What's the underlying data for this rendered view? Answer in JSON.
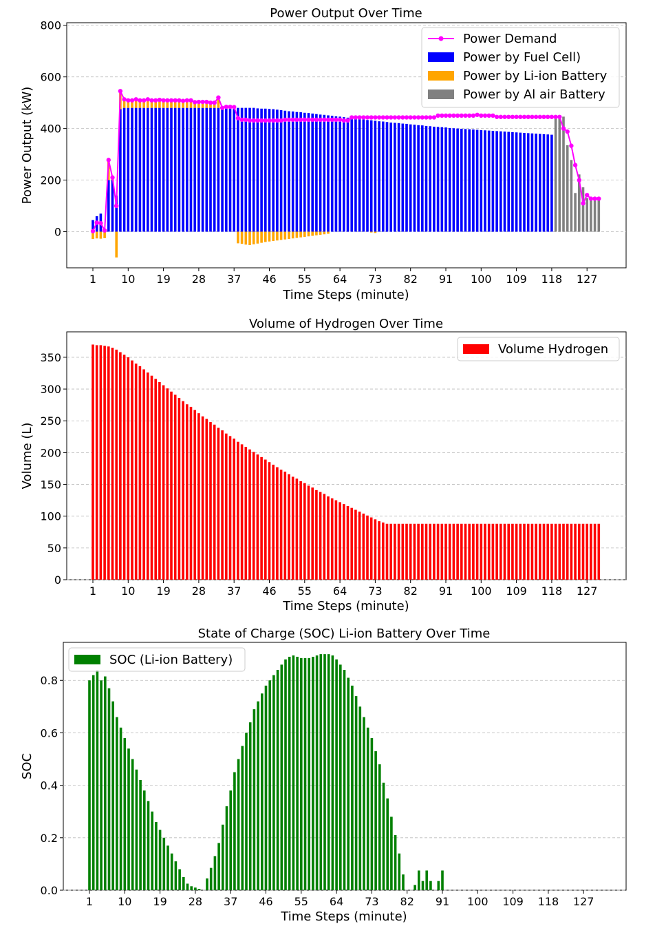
{
  "chart_data": [
    {
      "type": "bar",
      "title": "Power Output Over Time",
      "xlabel": "Time Steps (minute)",
      "ylabel": "Power Output (kW)",
      "ylim": [
        -140,
        810
      ],
      "yticks": [
        0,
        200,
        400,
        600,
        800
      ],
      "xtick_labels": [
        "1",
        "10",
        "19",
        "28",
        "37",
        "46",
        "55",
        "64",
        "73",
        "82",
        "91",
        "100",
        "109",
        "118",
        "127"
      ],
      "x": [
        1,
        2,
        3,
        4,
        5,
        6,
        7,
        8,
        9,
        10,
        11,
        12,
        13,
        14,
        15,
        16,
        17,
        18,
        19,
        20,
        21,
        22,
        23,
        24,
        25,
        26,
        27,
        28,
        29,
        30,
        31,
        32,
        33,
        34,
        35,
        36,
        37,
        38,
        39,
        40,
        41,
        42,
        43,
        44,
        45,
        46,
        47,
        48,
        49,
        50,
        51,
        52,
        53,
        54,
        55,
        56,
        57,
        58,
        59,
        60,
        61,
        62,
        63,
        64,
        65,
        66,
        67,
        68,
        69,
        70,
        71,
        72,
        73,
        74,
        75,
        76,
        77,
        78,
        79,
        80,
        81,
        82,
        83,
        84,
        85,
        86,
        87,
        88,
        89,
        90,
        91,
        92,
        93,
        94,
        95,
        96,
        97,
        98,
        99,
        100,
        101,
        102,
        103,
        104,
        105,
        106,
        107,
        108,
        109,
        110,
        111,
        112,
        113,
        114,
        115,
        116,
        117,
        118,
        119,
        120,
        121,
        122,
        123,
        124,
        125,
        126,
        127,
        128,
        129,
        130
      ],
      "legend": [
        "Power Demand",
        "Power by Fuel Cell)",
        "Power by Li-ion Battery",
        "Power by Al air Battery"
      ],
      "series": [
        {
          "name": "Power Demand",
          "color": "#ff00ff",
          "kind": "line",
          "values": [
            2,
            35,
            33,
            5,
            278,
            210,
            100,
            545,
            513,
            509,
            509,
            513,
            509,
            509,
            513,
            509,
            509,
            511,
            509,
            509,
            509,
            509,
            509,
            507,
            509,
            509,
            502,
            503,
            503,
            503,
            500,
            500,
            520,
            480,
            484,
            484,
            483,
            440,
            434,
            434,
            431,
            431,
            431,
            431,
            431,
            431,
            431,
            431,
            431,
            434,
            434,
            434,
            434,
            434,
            434,
            434,
            434,
            434,
            434,
            434,
            434,
            434,
            434,
            434,
            431,
            431,
            443,
            443,
            443,
            443,
            443,
            443,
            443,
            443,
            443,
            443,
            443,
            443,
            443,
            443,
            443,
            443,
            443,
            443,
            443,
            443,
            443,
            443,
            450,
            450,
            450,
            450,
            450,
            450,
            450,
            450,
            450,
            450,
            453,
            450,
            450,
            450,
            450,
            445,
            445,
            445,
            445,
            445,
            445,
            445,
            445,
            445,
            445,
            445,
            445,
            445,
            445,
            445,
            445,
            445,
            400,
            388,
            333,
            258,
            200,
            110,
            142,
            128,
            128,
            128
          ]
        },
        {
          "name": "Power by Fuel Cell)",
          "color": "#0000ff",
          "kind": "bar",
          "values": [
            45,
            60,
            70,
            0,
            200,
            200,
            140,
            475,
            480,
            480,
            480,
            480,
            480,
            480,
            480,
            480,
            480,
            480,
            480,
            480,
            480,
            480,
            480,
            480,
            480,
            480,
            480,
            480,
            480,
            480,
            480,
            480,
            480,
            480,
            480,
            480,
            480,
            480,
            480,
            480,
            480,
            480,
            478,
            477,
            477,
            476,
            475,
            473,
            471,
            469,
            467,
            466,
            464,
            463,
            461,
            460,
            458,
            456,
            454,
            453,
            451,
            449,
            447,
            446,
            444,
            442,
            440,
            439,
            437,
            435,
            433,
            432,
            430,
            428,
            427,
            425,
            423,
            422,
            421,
            419,
            418,
            416,
            415,
            413,
            412,
            410,
            409,
            407,
            406,
            405,
            404,
            402,
            401,
            400,
            399,
            398,
            397,
            396,
            395,
            394,
            393,
            392,
            391,
            390,
            389,
            388,
            387,
            386,
            385,
            384,
            383,
            382,
            381,
            380,
            379,
            378,
            377,
            376,
            0,
            0,
            0,
            0,
            0,
            0,
            0,
            0,
            0,
            0,
            0,
            0
          ]
        },
        {
          "name": "Power by Li-ion Battery",
          "color": "#ffa500",
          "kind": "bar",
          "values": [
            -28,
            -26,
            -27,
            -25,
            80,
            15,
            -100,
            70,
            33,
            29,
            29,
            33,
            29,
            29,
            33,
            29,
            29,
            31,
            29,
            29,
            29,
            29,
            29,
            27,
            29,
            29,
            22,
            23,
            23,
            23,
            20,
            20,
            40,
            0,
            0,
            0,
            0,
            -45,
            -47,
            -50,
            -52,
            -49,
            -46,
            -43,
            -40,
            -38,
            -36,
            -34,
            -32,
            -30,
            -28,
            -26,
            -24,
            -22,
            -20,
            -18,
            -16,
            -14,
            -12,
            -10,
            -8,
            0,
            0,
            0,
            0,
            0,
            0,
            0,
            0,
            0,
            0,
            -3,
            -5,
            0,
            0,
            0,
            0,
            0,
            0,
            0,
            0,
            0,
            0,
            0,
            0,
            0,
            0,
            0,
            0,
            0,
            0,
            0,
            0,
            0,
            0,
            0,
            0,
            0,
            0,
            0,
            0,
            0,
            0,
            0,
            0,
            0,
            0,
            0,
            0,
            0,
            0,
            0,
            0,
            0,
            0,
            0,
            0,
            0,
            0,
            0,
            0,
            0,
            0,
            0,
            0,
            0,
            0,
            0,
            0,
            0
          ]
        },
        {
          "name": "Power by Al air Battery",
          "color": "#808080",
          "kind": "bar",
          "values": [
            0,
            0,
            0,
            0,
            0,
            0,
            0,
            0,
            0,
            0,
            0,
            0,
            0,
            0,
            0,
            0,
            0,
            0,
            0,
            0,
            0,
            0,
            0,
            0,
            0,
            0,
            0,
            0,
            0,
            0,
            0,
            0,
            0,
            0,
            0,
            0,
            0,
            0,
            0,
            0,
            0,
            0,
            0,
            0,
            0,
            0,
            0,
            0,
            0,
            0,
            0,
            0,
            0,
            0,
            0,
            0,
            0,
            0,
            0,
            0,
            0,
            0,
            0,
            0,
            0,
            0,
            0,
            0,
            0,
            0,
            0,
            0,
            0,
            0,
            0,
            0,
            0,
            0,
            0,
            0,
            0,
            0,
            0,
            0,
            0,
            0,
            0,
            0,
            0,
            0,
            0,
            0,
            0,
            0,
            0,
            0,
            0,
            0,
            0,
            0,
            0,
            0,
            0,
            0,
            0,
            0,
            0,
            0,
            0,
            0,
            0,
            0,
            0,
            0,
            0,
            0,
            0,
            0,
            445,
            448,
            446,
            335,
            278,
            150,
            222,
            172,
            130,
            130,
            130,
            130
          ]
        }
      ]
    },
    {
      "type": "bar",
      "title": "Volume of Hydrogen Over Time",
      "xlabel": "Time Steps (minute)",
      "ylabel": "Volume (L)",
      "ylim": [
        0,
        390
      ],
      "yticks": [
        0,
        50,
        100,
        150,
        200,
        250,
        300,
        350
      ],
      "xtick_labels": [
        "1",
        "10",
        "19",
        "28",
        "37",
        "46",
        "55",
        "64",
        "73",
        "82",
        "91",
        "100",
        "109",
        "118",
        "127"
      ],
      "legend": [
        "Volume Hydrogen"
      ],
      "series": [
        {
          "name": "Volume Hydrogen",
          "color": "#ff0000",
          "values": [
            370,
            369,
            369,
            368,
            367,
            365,
            362,
            358,
            354,
            350,
            345,
            340,
            336,
            331,
            326,
            321,
            316,
            311,
            306,
            301,
            296,
            291,
            286,
            281,
            276,
            272,
            267,
            262,
            257,
            253,
            248,
            244,
            239,
            235,
            230,
            226,
            222,
            217,
            213,
            209,
            205,
            201,
            197,
            193,
            189,
            185,
            181,
            177,
            173,
            170,
            166,
            162,
            159,
            155,
            152,
            148,
            145,
            141,
            138,
            135,
            131,
            128,
            125,
            122,
            119,
            116,
            113,
            110,
            107,
            104,
            101,
            98,
            95,
            92,
            90,
            88,
            88,
            88,
            88,
            88,
            88,
            88,
            88,
            88,
            88,
            88,
            88,
            88,
            88,
            88,
            88,
            88,
            88,
            88,
            88,
            88,
            88,
            88,
            88,
            88,
            88,
            88,
            88,
            88,
            88,
            88,
            88,
            88,
            88,
            88,
            88,
            88,
            88,
            88,
            88,
            88,
            88,
            88,
            88,
            88,
            88,
            88,
            88,
            88,
            88,
            88,
            88,
            88,
            88,
            88
          ]
        }
      ]
    },
    {
      "type": "bar",
      "title": "State of Charge (SOC) Li-ion Battery Over Time",
      "xlabel": "Time Steps (minute)",
      "ylabel": "SOC",
      "ylim": [
        0,
        0.945
      ],
      "yticks": [
        0.0,
        0.2,
        0.4,
        0.6,
        0.8
      ],
      "ytick_labels": [
        "0.0",
        "0.2",
        "0.4",
        "0.6",
        "0.8"
      ],
      "xtick_labels": [
        "1",
        "10",
        "19",
        "28",
        "37",
        "46",
        "55",
        "64",
        "73",
        "82",
        "91",
        "100",
        "109",
        "118",
        "127"
      ],
      "legend": [
        "SOC (Li-ion Battery)"
      ],
      "series": [
        {
          "name": "SOC (Li-ion Battery)",
          "color": "#008000",
          "values": [
            0.8,
            0.82,
            0.84,
            0.8,
            0.815,
            0.77,
            0.72,
            0.66,
            0.62,
            0.58,
            0.54,
            0.5,
            0.46,
            0.42,
            0.38,
            0.34,
            0.3,
            0.26,
            0.23,
            0.2,
            0.17,
            0.14,
            0.11,
            0.08,
            0.05,
            0.025,
            0.015,
            0.01,
            0.005,
            0.0,
            0.045,
            0.085,
            0.13,
            0.18,
            0.25,
            0.32,
            0.38,
            0.45,
            0.5,
            0.55,
            0.6,
            0.64,
            0.69,
            0.72,
            0.75,
            0.78,
            0.8,
            0.82,
            0.84,
            0.86,
            0.88,
            0.89,
            0.895,
            0.89,
            0.885,
            0.885,
            0.885,
            0.89,
            0.895,
            0.9,
            0.9,
            0.9,
            0.895,
            0.88,
            0.86,
            0.84,
            0.81,
            0.78,
            0.74,
            0.7,
            0.66,
            0.62,
            0.58,
            0.53,
            0.48,
            0.41,
            0.35,
            0.28,
            0.21,
            0.14,
            0.06,
            0.0,
            0.0,
            0.02,
            0.075,
            0.035,
            0.075,
            0.035,
            0.0,
            0.035,
            0.075,
            0.0
          ]
        }
      ]
    }
  ]
}
